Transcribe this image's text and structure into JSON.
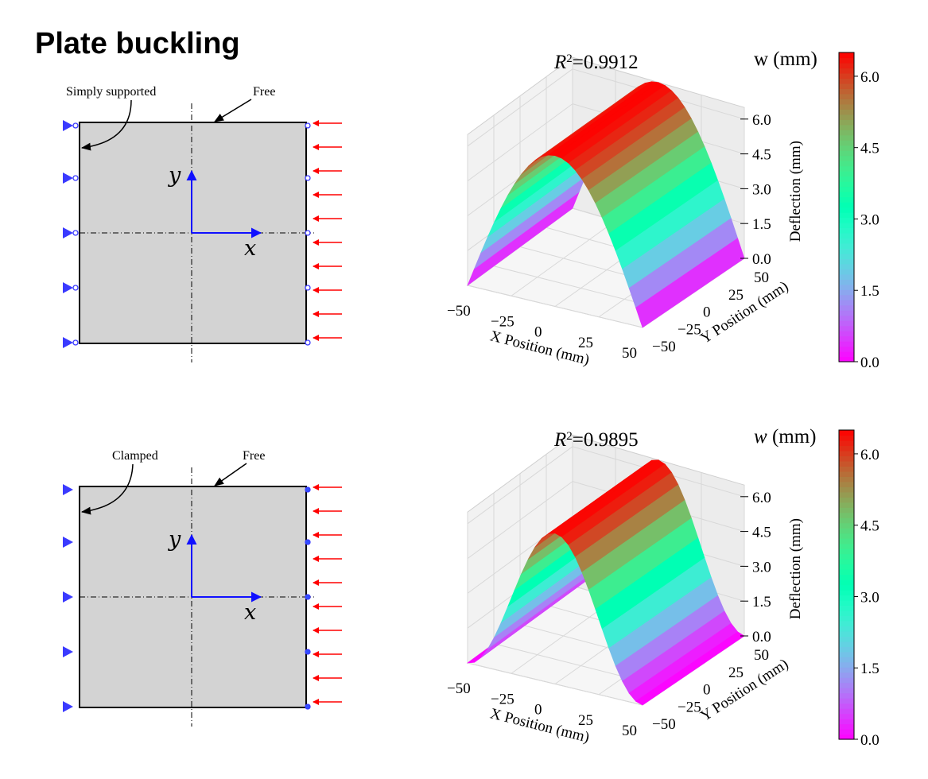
{
  "title": "Plate buckling",
  "panels": [
    {
      "id": "top",
      "left_edge_label": "Simply supported",
      "free_label": "Free",
      "left_support": "pinned",
      "right_support": "roller",
      "axis_x": "x",
      "axis_y": "y",
      "r2_prefix": "R",
      "r2_sup": "2",
      "r2_value": "=0.9912",
      "colorbar_title": "w (mm)",
      "colorbar_title_italic": false
    },
    {
      "id": "bottom",
      "left_edge_label": "Clamped",
      "free_label": "Free",
      "left_support": "clamped",
      "right_support": "roller",
      "axis_x": "x",
      "axis_y": "y",
      "r2_prefix": "R",
      "r2_sup": "2",
      "r2_value": "=0.9895",
      "colorbar_title": "w (mm)",
      "colorbar_title_italic": true
    }
  ],
  "colors": {
    "plate_fill": "#d3d3d3",
    "support_blue": "#3a3aff",
    "load_red": "#ff0000",
    "axis_blue": "#1010ff"
  },
  "chart_data": [
    {
      "type": "surface3d",
      "title": "R2 =0.9912",
      "xlabel": "X Position (mm)",
      "ylabel": "Y Position (mm)",
      "zlabel": "Deflection (mm)",
      "xlim": [
        -50,
        50
      ],
      "ylim": [
        -50,
        50
      ],
      "zlim": [
        0,
        6.5
      ],
      "x_ticks": [
        "−50",
        "−25",
        "0",
        "25",
        "50"
      ],
      "y_ticks": [
        "−50",
        "−25",
        "0",
        "25",
        "50"
      ],
      "z_ticks": [
        "0.0",
        "1.5",
        "3.0",
        "4.5",
        "6.0"
      ],
      "colormap": "rainbow",
      "colorbar_label": "w (mm)",
      "colorbar_ticks": [
        "0.0",
        "1.5",
        "3.0",
        "4.5",
        "6.0"
      ],
      "profile": "sine",
      "max_deflection": 6.5,
      "r2": 0.9912
    },
    {
      "type": "surface3d",
      "title": "R2 =0.9895",
      "xlabel": "X Position (mm)",
      "ylabel": "Y Position (mm)",
      "zlabel": "Deflection (mm)",
      "xlim": [
        -50,
        50
      ],
      "ylim": [
        -50,
        50
      ],
      "zlim": [
        0,
        6.5
      ],
      "x_ticks": [
        "−50",
        "−25",
        "0",
        "25",
        "50"
      ],
      "y_ticks": [
        "−50",
        "−25",
        "0",
        "25",
        "50"
      ],
      "z_ticks": [
        "0.0",
        "1.5",
        "3.0",
        "4.5",
        "6.0"
      ],
      "colormap": "rainbow",
      "colorbar_label": "w (mm)",
      "colorbar_ticks": [
        "0.0",
        "1.5",
        "3.0",
        "4.5",
        "6.0"
      ],
      "profile": "clamped-cosine",
      "max_deflection": 6.5,
      "r2": 0.9895
    }
  ]
}
